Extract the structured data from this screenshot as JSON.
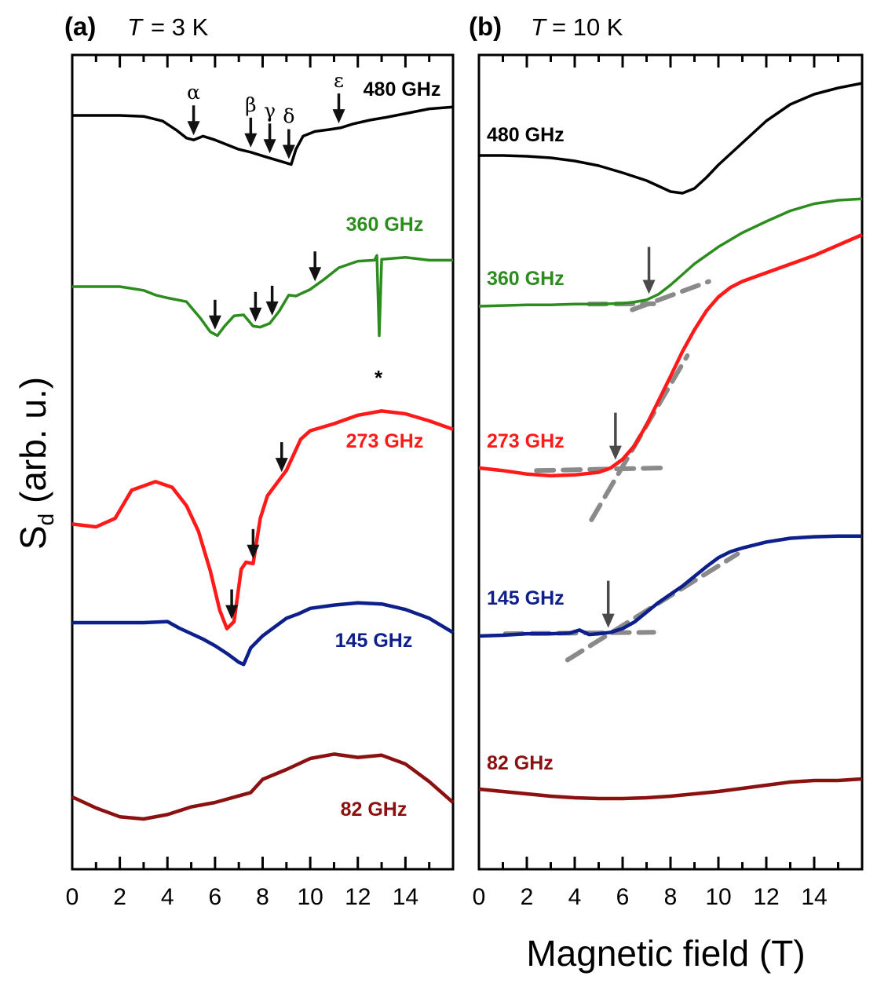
{
  "chart_data": [
    {
      "type": "line",
      "panel_label": "(a)",
      "temperature_symbol": "T",
      "temperature_value": "= 3 K",
      "xlabel": "Magnetic field (T)",
      "ylabel": "Sd (arb. u.)",
      "ylabel_main": "S",
      "ylabel_sub": "d",
      "ylabel_rest": " (arb. u.)",
      "xlim": [
        0,
        16
      ],
      "xticks": [
        "0",
        "2",
        "4",
        "6",
        "8",
        "10",
        "12",
        "14"
      ],
      "series": [
        {
          "name": "480 GHz",
          "color": "#000000",
          "x": [
            0,
            1,
            2,
            3,
            3.8,
            4.4,
            4.8,
            5.1,
            5.5,
            6,
            6.5,
            7,
            7.5,
            8,
            8.4,
            8.8,
            9.2,
            9.4,
            9.7,
            10.2,
            10.8,
            11.3,
            11.8,
            12.5,
            13.2,
            14,
            15,
            16
          ],
          "y": [
            0.0,
            0.0,
            0.0,
            -0.1,
            -0.6,
            -1.6,
            -2.4,
            -2.6,
            -2.2,
            -2.6,
            -3.1,
            -3.6,
            -3.9,
            -4.3,
            -4.6,
            -4.9,
            -5.2,
            -3.6,
            -2.2,
            -1.7,
            -1.5,
            -1.3,
            -0.9,
            -0.5,
            -0.2,
            0.2,
            0.7,
            0.9
          ]
        },
        {
          "name": "360 GHz",
          "color": "#2c8c1e",
          "x": [
            0,
            1,
            2,
            3,
            3.5,
            4,
            4.8,
            5.4,
            5.8,
            6.1,
            6.4,
            6.8,
            7.2,
            7.6,
            7.9,
            8.3,
            8.7,
            9.1,
            9.4,
            10,
            10.6,
            11.2,
            12,
            12.7,
            12.8,
            12.9,
            13,
            14,
            15,
            16
          ],
          "y": [
            0.0,
            0.0,
            0.0,
            -0.4,
            -0.9,
            -1.2,
            -1.6,
            -3.4,
            -4.8,
            -5.2,
            -4.2,
            -3.1,
            -3.0,
            -4.2,
            -4.3,
            -3.9,
            -2.6,
            -0.9,
            -1.0,
            -0.3,
            0.8,
            2.0,
            2.7,
            2.8,
            3.3,
            -5.2,
            2.9,
            3.1,
            2.8,
            2.8
          ]
        },
        {
          "name": "273 GHz",
          "color": "#ff1a1a",
          "x": [
            0,
            1,
            1.8,
            2.5,
            3.5,
            4.2,
            4.8,
            5.3,
            5.8,
            6.2,
            6.5,
            6.8,
            7.1,
            7.3,
            7.6,
            7.9,
            8.2,
            8.6,
            9,
            9.6,
            10,
            11,
            12,
            13,
            14,
            15,
            16
          ],
          "y": [
            -1.8,
            -2.0,
            -1.4,
            0.6,
            1.2,
            0.8,
            -0.5,
            -2.3,
            -5.1,
            -7.9,
            -9.2,
            -8.7,
            -5.0,
            -4.5,
            -4.6,
            -1.4,
            0.2,
            1.1,
            2.0,
            4.2,
            4.8,
            5.3,
            5.9,
            6.2,
            6.0,
            5.5,
            4.9
          ]
        },
        {
          "name": "145 GHz",
          "color": "#0d1f8a",
          "x": [
            0,
            1,
            2,
            3,
            4,
            4.5,
            5,
            5.5,
            6,
            6.5,
            7,
            7.2,
            7.5,
            8,
            8.5,
            9,
            9.5,
            10,
            11,
            12,
            13,
            14,
            15,
            16
          ],
          "y": [
            0.0,
            0.0,
            0.0,
            0.0,
            0.1,
            -0.5,
            -1.0,
            -1.5,
            -2.1,
            -2.8,
            -3.6,
            -3.8,
            -2.3,
            -1.2,
            -0.4,
            0.4,
            0.8,
            1.3,
            1.6,
            1.8,
            1.7,
            1.2,
            0.4,
            -0.9
          ]
        },
        {
          "name": "82 GHz",
          "color": "#8b1010",
          "x": [
            0,
            1,
            2,
            3,
            4,
            5,
            6,
            7,
            7.5,
            8,
            9,
            10,
            11,
            12,
            13,
            14,
            15,
            16
          ],
          "y": [
            0.0,
            -1.0,
            -1.8,
            -2.0,
            -1.6,
            -0.9,
            -0.5,
            0.1,
            0.4,
            1.6,
            2.5,
            3.5,
            3.9,
            3.6,
            3.8,
            3.0,
            1.4,
            -0.5
          ]
        }
      ],
      "arrows": [
        {
          "label": "α",
          "series": "480 GHz",
          "x": 5.1
        },
        {
          "label": "β",
          "series": "480 GHz",
          "x": 7.5
        },
        {
          "label": "γ",
          "series": "480 GHz",
          "x": 8.3
        },
        {
          "label": "δ",
          "series": "480 GHz",
          "x": 9.1
        },
        {
          "label": "ε",
          "series": "480 GHz",
          "x": 11.2
        },
        {
          "label": "",
          "series": "360 GHz",
          "x": 6.0
        },
        {
          "label": "",
          "series": "360 GHz",
          "x": 7.7
        },
        {
          "label": "",
          "series": "360 GHz",
          "x": 8.4
        },
        {
          "label": "",
          "series": "360 GHz",
          "x": 10.2
        },
        {
          "label": "",
          "series": "273 GHz",
          "x": 6.7
        },
        {
          "label": "",
          "series": "273 GHz",
          "x": 7.6
        },
        {
          "label": "",
          "series": "273 GHz",
          "x": 8.8
        }
      ],
      "annotations": [
        {
          "text": "*",
          "note": "marks spike on 360 GHz trace",
          "x": 12.9
        }
      ]
    },
    {
      "type": "line",
      "panel_label": "(b)",
      "temperature_symbol": "T",
      "temperature_value": "= 10 K",
      "xlabel": "Magnetic field (T)",
      "xlim": [
        0,
        16
      ],
      "xticks": [
        "0",
        "2",
        "4",
        "6",
        "8",
        "10",
        "12",
        "14"
      ],
      "series": [
        {
          "name": "480 GHz",
          "color": "#000000",
          "x": [
            0,
            1,
            2,
            3,
            4,
            5,
            6,
            7,
            7.5,
            8,
            8.5,
            9,
            9.5,
            10,
            11,
            12,
            13,
            14,
            15,
            16
          ],
          "y": [
            0.0,
            0.0,
            -0.1,
            -0.3,
            -0.7,
            -1.3,
            -2.2,
            -3.2,
            -3.9,
            -4.6,
            -4.8,
            -4.2,
            -2.8,
            -1.2,
            1.6,
            4.4,
            6.5,
            7.8,
            8.6,
            9.2
          ]
        },
        {
          "name": "360 GHz",
          "color": "#2c8c1e",
          "x": [
            0,
            1,
            2,
            3,
            4,
            5,
            6,
            6.5,
            7,
            7.5,
            8,
            8.5,
            9,
            9.5,
            10,
            10.5,
            11,
            12,
            13,
            14,
            15,
            16
          ],
          "y": [
            0.0,
            0.1,
            0.2,
            0.2,
            0.3,
            0.3,
            0.4,
            0.6,
            0.9,
            1.7,
            3.0,
            4.5,
            6.0,
            7.2,
            8.4,
            9.4,
            10.4,
            12.0,
            13.5,
            14.5,
            15.0,
            15.2
          ]
        },
        {
          "name": "273 GHz",
          "color": "#ff1a1a",
          "x": [
            0,
            1,
            2,
            3,
            4,
            5,
            5.5,
            6,
            6.5,
            7,
            7.5,
            8,
            8.5,
            9,
            9.5,
            10,
            10.5,
            11,
            12,
            13,
            14,
            15,
            16
          ],
          "y": [
            0.0,
            -0.3,
            -0.7,
            -0.9,
            -0.8,
            -0.5,
            0.0,
            1.0,
            2.6,
            5.0,
            7.8,
            10.6,
            13.5,
            16.0,
            18.2,
            19.8,
            20.9,
            21.6,
            22.6,
            23.6,
            24.6,
            25.8,
            27.0
          ]
        },
        {
          "name": "145 GHz",
          "color": "#0d1f8a",
          "x": [
            0,
            1,
            2,
            3,
            3.8,
            4.2,
            4.6,
            5,
            5.5,
            6,
            6.5,
            7,
            7.5,
            8,
            8.5,
            9,
            9.5,
            10,
            10.5,
            11,
            12,
            13,
            14,
            15,
            16
          ],
          "y": [
            0.0,
            0.1,
            0.3,
            0.3,
            0.4,
            0.8,
            0.2,
            0.3,
            0.5,
            1.0,
            1.9,
            3.2,
            4.5,
            5.6,
            6.7,
            8.0,
            9.3,
            10.5,
            11.3,
            11.8,
            12.6,
            13.1,
            13.3,
            13.4,
            13.4
          ]
        },
        {
          "name": "82 GHz",
          "color": "#8b1010",
          "x": [
            0,
            1,
            2,
            3,
            4,
            5,
            6,
            7,
            8,
            9,
            10,
            11,
            12,
            13,
            14,
            15,
            16
          ],
          "y": [
            0.0,
            -0.3,
            -0.6,
            -0.9,
            -1.1,
            -1.2,
            -1.2,
            -1.1,
            -0.9,
            -0.6,
            -0.3,
            0.1,
            0.5,
            0.9,
            1.1,
            1.1,
            1.3
          ]
        }
      ],
      "guide_lines": [
        {
          "series": "360 GHz",
          "x": [
            4.6,
            7.3
          ],
          "y": [
            0.3,
            0.35
          ]
        },
        {
          "series": "360 GHz",
          "x": [
            6.4,
            9.6
          ],
          "y": [
            -0.5,
            3.5
          ]
        },
        {
          "series": "273 GHz",
          "x": [
            2.4,
            7.6
          ],
          "y": [
            -0.3,
            0.0
          ]
        },
        {
          "series": "273 GHz",
          "x": [
            4.7,
            8.7
          ],
          "y": [
            -6.0,
            13.0
          ]
        },
        {
          "series": "145 GHz",
          "x": [
            1.1,
            7.3
          ],
          "y": [
            0.3,
            0.5
          ]
        },
        {
          "series": "145 GHz",
          "x": [
            3.7,
            10.8
          ],
          "y": [
            -3.2,
            11.0
          ]
        }
      ],
      "arrows": [
        {
          "label": "",
          "series": "360 GHz",
          "x": 7.1
        },
        {
          "label": "",
          "series": "273 GHz",
          "x": 5.7
        },
        {
          "label": "",
          "series": "145 GHz",
          "x": 5.4
        }
      ]
    }
  ]
}
